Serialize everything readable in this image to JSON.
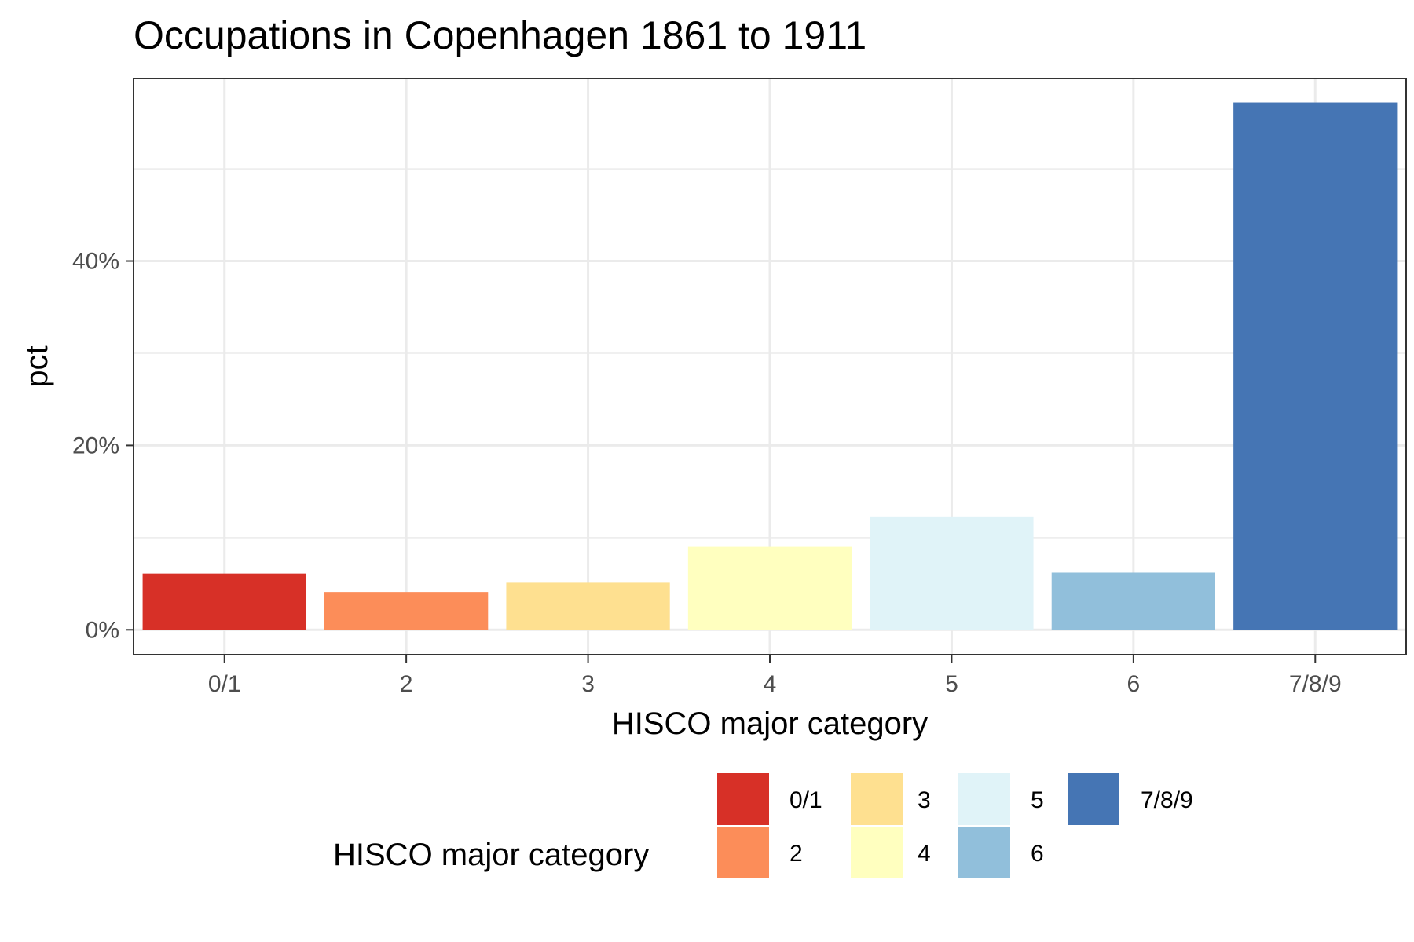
{
  "chart_data": {
    "type": "bar",
    "title": "Occupations in Copenhagen 1861 to 1911",
    "xlabel": "HISCO major category",
    "ylabel": "pct",
    "categories": [
      "0/1",
      "2",
      "3",
      "4",
      "5",
      "6",
      "7/8/9"
    ],
    "values": [
      6.1,
      4.1,
      5.1,
      9.0,
      12.3,
      6.2,
      57.2
    ],
    "colors": [
      "#D73027",
      "#FC8D59",
      "#FEE090",
      "#FFFFBF",
      "#E0F3F8",
      "#91BFDB",
      "#4575B4"
    ],
    "ylim": [
      -2.7,
      59.8
    ],
    "yticks": [
      0,
      20,
      40
    ],
    "ytick_labels": [
      "0%",
      "20%",
      "40%"
    ],
    "grid": true,
    "legend": {
      "title": "HISCO major category",
      "position": "bottom",
      "entries": [
        "0/1",
        "2",
        "3",
        "4",
        "5",
        "6",
        "7/8/9"
      ]
    }
  }
}
